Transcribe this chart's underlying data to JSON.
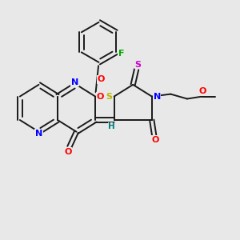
{
  "bg_color": "#e8e8e8",
  "bond_color": "#1a1a1a",
  "N_color": "#0000ff",
  "O_color": "#ff0000",
  "S_color": "#b8b800",
  "S2_color": "#cc00cc",
  "F_color": "#00aa00",
  "H_color": "#008080",
  "line_width": 1.4,
  "dbo": 0.1,
  "figsize": [
    3.0,
    3.0
  ],
  "dpi": 100,
  "xlim": [
    0,
    10
  ],
  "ylim": [
    0,
    10
  ]
}
